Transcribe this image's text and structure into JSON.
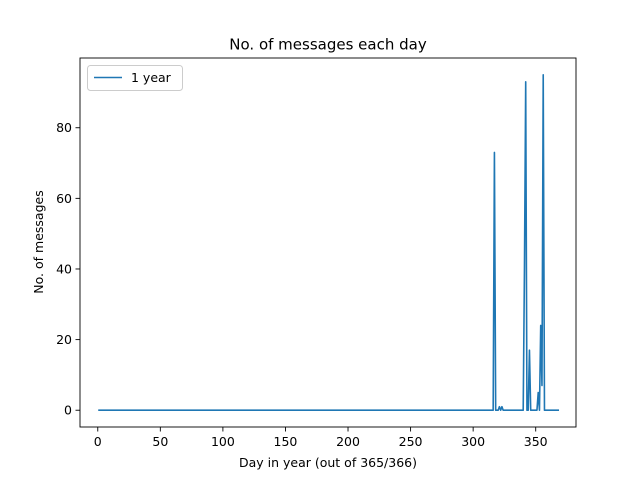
{
  "chart_data": {
    "type": "line",
    "title": "No. of messages each day",
    "xlabel": "Day in year (out of 365/366)",
    "ylabel": "No. of messages",
    "xlim": [
      -14.2,
      382.2
    ],
    "ylim": [
      -4.75,
      99.75
    ],
    "xticks": [
      0,
      50,
      100,
      150,
      200,
      250,
      300,
      350
    ],
    "yticks": [
      0,
      20,
      40,
      60,
      80
    ],
    "grid": false,
    "legend_position": "top-left",
    "series": [
      {
        "name": "1 year",
        "color": "#1f77b4",
        "points": [
          [
            1,
            0
          ],
          [
            316,
            0
          ],
          [
            317,
            73
          ],
          [
            318,
            0
          ],
          [
            320,
            0
          ],
          [
            321,
            1
          ],
          [
            322,
            0
          ],
          [
            323,
            1
          ],
          [
            324,
            0
          ],
          [
            340,
            0
          ],
          [
            341,
            40
          ],
          [
            342,
            93
          ],
          [
            343,
            0
          ],
          [
            344,
            0
          ],
          [
            345,
            17
          ],
          [
            346,
            0
          ],
          [
            351,
            0
          ],
          [
            352,
            5
          ],
          [
            353,
            0
          ],
          [
            354,
            24
          ],
          [
            355,
            7
          ],
          [
            356,
            95
          ],
          [
            357,
            0
          ],
          [
            368,
            0
          ]
        ]
      }
    ]
  }
}
